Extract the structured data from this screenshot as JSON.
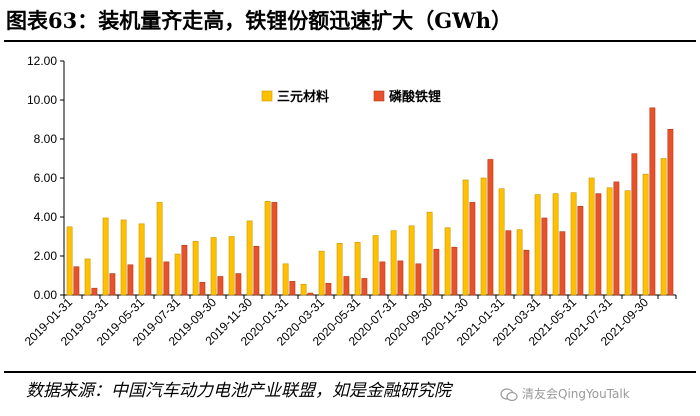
{
  "title": "图表63：装机量齐走高，铁锂份额迅速扩大（GWh）",
  "source": "数据来源：中国汽车动力电池产业联盟，如是金融研究院",
  "watermark": "清友会QingYouTalk",
  "colors": {
    "ternary": "#FFC000",
    "ternary_edge": "#C89600",
    "lfp": "#E8522A",
    "lfp_edge": "#B23A17",
    "axis": "#000000"
  },
  "icons": {
    "watermark": "wechat-icon"
  },
  "chart_data": {
    "type": "bar",
    "title": "",
    "xlabel": "",
    "ylabel": "",
    "ylim": [
      0,
      12
    ],
    "yticks": [
      "0.00",
      "2.00",
      "4.00",
      "6.00",
      "8.00",
      "10.00",
      "12.00"
    ],
    "legend_position": "top-center",
    "grid": false,
    "categories": [
      "2019-01-31",
      "2019-02-28",
      "2019-03-31",
      "2019-04-30",
      "2019-05-31",
      "2019-06-30",
      "2019-07-31",
      "2019-08-31",
      "2019-09-30",
      "2019-10-31",
      "2019-11-30",
      "2019-12-31",
      "2020-01-31",
      "2020-02-29",
      "2020-03-31",
      "2020-04-30",
      "2020-05-31",
      "2020-06-30",
      "2020-07-31",
      "2020-08-31",
      "2020-09-30",
      "2020-10-31",
      "2020-11-30",
      "2020-12-31",
      "2021-01-31",
      "2021-02-28",
      "2021-03-31",
      "2021-04-30",
      "2021-05-31",
      "2021-06-30",
      "2021-07-31",
      "2021-08-31",
      "2021-09-30",
      "2021-10-31"
    ],
    "xtick_labels": [
      "2019-01-31",
      "2019-03-31",
      "2019-05-31",
      "2019-07-31",
      "2019-09-30",
      "2019-11-30",
      "2020-01-31",
      "2020-03-31",
      "2020-05-31",
      "2020-07-31",
      "2020-09-30",
      "2020-11-30",
      "2021-01-31",
      "2021-03-31",
      "2021-05-31",
      "2021-07-31",
      "2021-09-30"
    ],
    "series": [
      {
        "name": "三元材料",
        "values": [
          3.5,
          1.85,
          3.95,
          3.85,
          3.65,
          4.75,
          2.1,
          2.75,
          2.95,
          3.0,
          3.8,
          4.8,
          1.6,
          0.55,
          2.25,
          2.65,
          2.7,
          3.05,
          3.3,
          3.55,
          4.25,
          3.45,
          5.9,
          6.0,
          5.45,
          3.35,
          5.15,
          5.2,
          5.25,
          6.0,
          5.5,
          5.35,
          6.2,
          7.0
        ]
      },
      {
        "name": "磷酸铁锂",
        "values": [
          1.45,
          0.35,
          1.1,
          1.55,
          1.9,
          1.7,
          2.55,
          0.65,
          0.95,
          1.1,
          2.5,
          4.75,
          0.7,
          0.1,
          0.6,
          0.95,
          0.85,
          1.7,
          1.75,
          1.6,
          2.35,
          2.45,
          4.75,
          6.95,
          3.3,
          2.3,
          3.95,
          3.25,
          4.55,
          5.2,
          5.8,
          7.25,
          9.6,
          8.5
        ]
      }
    ]
  }
}
